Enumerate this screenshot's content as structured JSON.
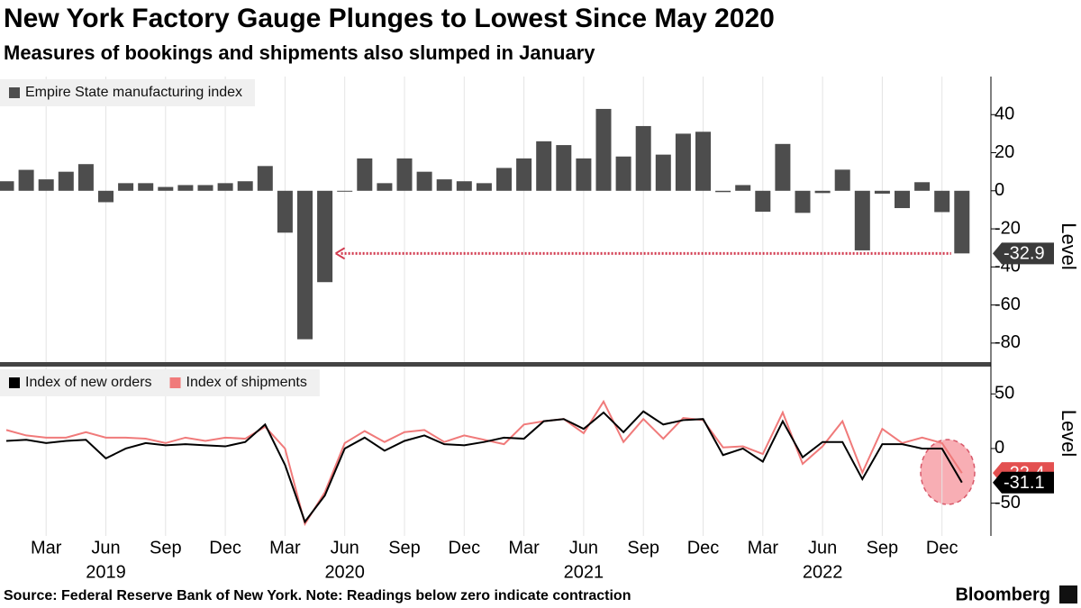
{
  "title": "New York Factory Gauge Plunges to Lowest Since May 2020",
  "subtitle": "Measures of bookings and shipments also slumped in January",
  "source": "Source: Federal Reserve Bank of New York. Note: Readings below zero indicate contraction",
  "logo": "Bloomberg",
  "x": [
    "2019-01",
    "2019-02",
    "2019-03",
    "2019-04",
    "2019-05",
    "2019-06",
    "2019-07",
    "2019-08",
    "2019-09",
    "2019-10",
    "2019-11",
    "2019-12",
    "2020-01",
    "2020-02",
    "2020-03",
    "2020-04",
    "2020-05",
    "2020-06",
    "2020-07",
    "2020-08",
    "2020-09",
    "2020-10",
    "2020-11",
    "2020-12",
    "2021-01",
    "2021-02",
    "2021-03",
    "2021-04",
    "2021-05",
    "2021-06",
    "2021-07",
    "2021-08",
    "2021-09",
    "2021-10",
    "2021-11",
    "2021-12",
    "2022-01",
    "2022-02",
    "2022-03",
    "2022-04",
    "2022-05",
    "2022-06",
    "2022-07",
    "2022-08",
    "2022-09",
    "2022-10",
    "2022-11",
    "2022-12",
    "2023-01"
  ],
  "xticks": [
    {
      "value": "2019-03",
      "label": "Mar"
    },
    {
      "value": "2019-06",
      "label": "Jun"
    },
    {
      "value": "2019-09",
      "label": "Sep"
    },
    {
      "value": "2019-12",
      "label": "Dec"
    },
    {
      "value": "2020-03",
      "label": "Mar"
    },
    {
      "value": "2020-06",
      "label": "Jun"
    },
    {
      "value": "2020-09",
      "label": "Sep"
    },
    {
      "value": "2020-12",
      "label": "Dec"
    },
    {
      "value": "2021-03",
      "label": "Mar"
    },
    {
      "value": "2021-06",
      "label": "Jun"
    },
    {
      "value": "2021-09",
      "label": "Sep"
    },
    {
      "value": "2021-12",
      "label": "Dec"
    },
    {
      "value": "2022-03",
      "label": "Mar"
    },
    {
      "value": "2022-06",
      "label": "Jun"
    },
    {
      "value": "2022-09",
      "label": "Sep"
    },
    {
      "value": "2022-12",
      "label": "Dec"
    }
  ],
  "years": [
    {
      "value": "2019-06",
      "label": "2019"
    },
    {
      "value": "2020-06",
      "label": "2020"
    },
    {
      "value": "2021-06",
      "label": "2021"
    },
    {
      "value": "2022-06",
      "label": "2022"
    }
  ],
  "chart_data": [
    {
      "type": "bar",
      "ylabel": "Level",
      "ylim": [
        -90,
        60
      ],
      "yticks": [
        -80,
        -60,
        -40,
        -20,
        0,
        20,
        40
      ],
      "series": [
        {
          "name": "Empire State manufacturing index",
          "color": "#4d4d4d",
          "values": [
            5,
            11,
            6,
            10,
            14,
            -6,
            4,
            4,
            2,
            3,
            3,
            4,
            5,
            13,
            -22,
            -78,
            -48,
            -0.2,
            17,
            4,
            17,
            10,
            6,
            5,
            4,
            12,
            17,
            26,
            24,
            17,
            43,
            18,
            34,
            19,
            30,
            31,
            -0.7,
            3,
            -11,
            24.6,
            -11.6,
            -1.2,
            11.1,
            -31.3,
            -1.5,
            -9.1,
            4.5,
            -11.2,
            -32.9
          ]
        }
      ]
    },
    {
      "type": "line",
      "ylabel": "Level",
      "ylim": [
        -80,
        75
      ],
      "yticks": [
        -50,
        0,
        50
      ],
      "series": [
        {
          "name": "Index of new orders",
          "color": "#000000",
          "values": [
            7,
            8,
            5,
            7,
            8,
            -9,
            0,
            5,
            3,
            4,
            3,
            2,
            6,
            22,
            -15,
            -67,
            -43,
            0,
            10,
            -2,
            7,
            12,
            4,
            3,
            6,
            10,
            9,
            25,
            27,
            18,
            33,
            15,
            34,
            22,
            26,
            27,
            -6,
            0,
            -12,
            25,
            -8,
            6,
            6,
            -28,
            4,
            4,
            0,
            0,
            -31.1
          ]
        },
        {
          "name": "Index of shipments",
          "color": "#f07a7a",
          "values": [
            17,
            12,
            10,
            10,
            15,
            10,
            10,
            9,
            5,
            10,
            7,
            10,
            9,
            20,
            0,
            -69,
            -40,
            5,
            16,
            6,
            15,
            17,
            6,
            12,
            8,
            4,
            22,
            25,
            27,
            14,
            43,
            6,
            27,
            9,
            28,
            26,
            1,
            2,
            -5,
            33,
            -14,
            2,
            25,
            -22,
            18,
            5,
            10,
            5,
            -22.4
          ]
        }
      ]
    }
  ]
}
